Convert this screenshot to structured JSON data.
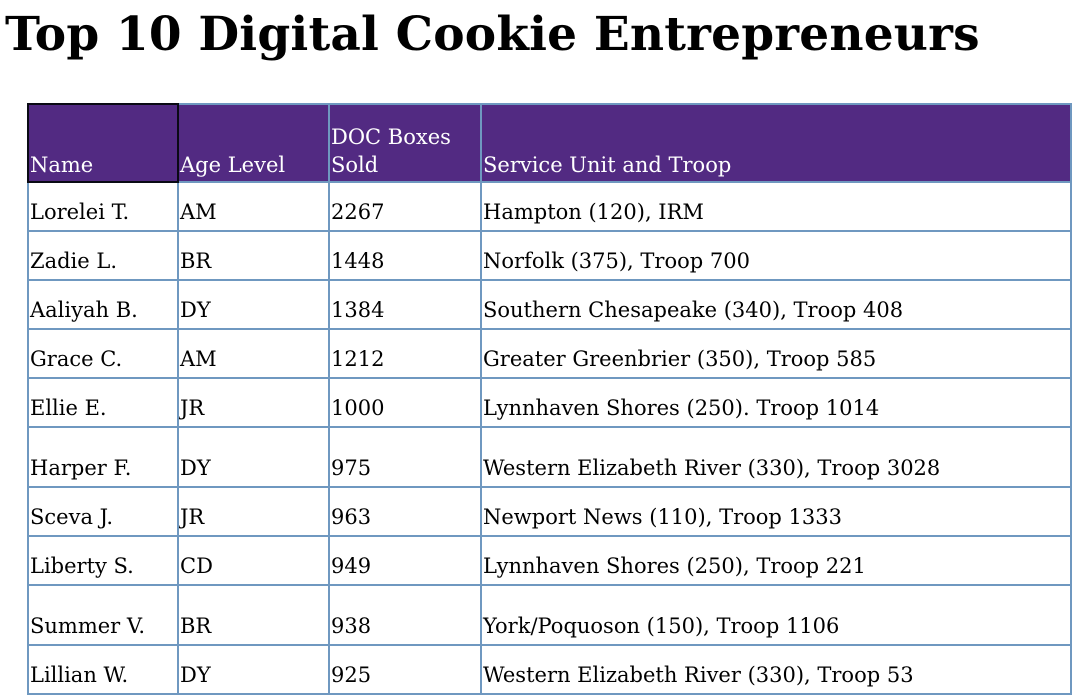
{
  "title": "Top 10 Digital Cookie Entrepreneurs",
  "table": {
    "headers": {
      "name": "Name",
      "age_level": "Age Level",
      "doc_boxes_line1": "DOC Boxes",
      "doc_boxes_line2": "Sold",
      "service_unit": "Service Unit and Troop"
    },
    "rows": [
      {
        "name": "Lorelei T.",
        "age_level": "AM",
        "boxes": "2267",
        "unit": "Hampton (120), IRM"
      },
      {
        "name": "Zadie L.",
        "age_level": "BR",
        "boxes": "1448",
        "unit": "Norfolk (375), Troop 700"
      },
      {
        "name": "Aaliyah B.",
        "age_level": "DY",
        "boxes": "1384",
        "unit": "Southern Chesapeake (340), Troop 408"
      },
      {
        "name": "Grace C.",
        "age_level": "AM",
        "boxes": "1212",
        "unit": "Greater Greenbrier (350), Troop 585"
      },
      {
        "name": "Ellie E.",
        "age_level": "JR",
        "boxes": "1000",
        "unit": "Lynnhaven Shores (250). Troop 1014"
      },
      {
        "name": "Harper F.",
        "age_level": "DY",
        "boxes": "975",
        "unit": "Western Elizabeth River (330), Troop 3028"
      },
      {
        "name": "Sceva J.",
        "age_level": "JR",
        "boxes": "963",
        "unit": "Newport News (110), Troop 1333"
      },
      {
        "name": "Liberty S.",
        "age_level": "CD",
        "boxes": "949",
        "unit": "Lynnhaven Shores (250), Troop 221"
      },
      {
        "name": "Summer V.",
        "age_level": "BR",
        "boxes": "938",
        "unit": "York/Poquoson (150), Troop 1106"
      },
      {
        "name": "Lillian W.",
        "age_level": "DY",
        "boxes": "925",
        "unit": "Western Elizabeth River (330), Troop 53"
      }
    ]
  },
  "colors": {
    "header_bg": "#522a82",
    "header_text": "#ffffff",
    "grid_line": "#6f98c0",
    "selected_cell_border": "#0a0a14"
  }
}
